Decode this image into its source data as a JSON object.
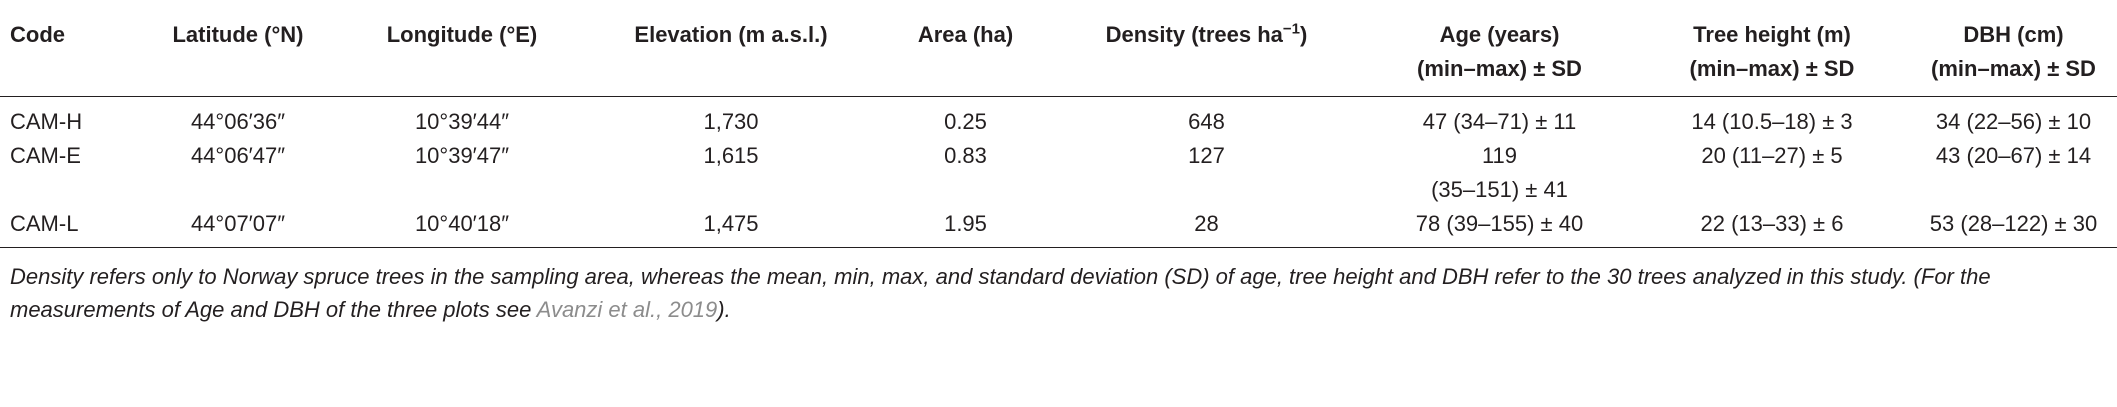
{
  "table": {
    "headers": [
      [
        "Code"
      ],
      [
        "Latitude (°N)"
      ],
      [
        "Longitude (°E)"
      ],
      [
        "Elevation (m a.s.l.)"
      ],
      [
        "Area (ha)"
      ],
      [
        "Density (trees ha",
        "−1",
        ")"
      ],
      [
        "Age (years)",
        "(min–max) ± SD"
      ],
      [
        "Tree height (m)",
        "(min–max) ± SD"
      ],
      [
        "DBH (cm)",
        "(min–max) ± SD"
      ]
    ],
    "rows": [
      [
        [
          "CAM-H"
        ],
        [
          "44°06′36″"
        ],
        [
          "10°39′44″"
        ],
        [
          "1,730"
        ],
        [
          "0.25"
        ],
        [
          "648"
        ],
        [
          "47 (34–71) ± 11"
        ],
        [
          "14 (10.5–18) ± 3"
        ],
        [
          "34 (22–56) ± 10"
        ]
      ],
      [
        [
          "CAM-E"
        ],
        [
          "44°06′47″"
        ],
        [
          "10°39′47″"
        ],
        [
          "1,615"
        ],
        [
          "0.83"
        ],
        [
          "127"
        ],
        [
          "119",
          "(35–151) ± 41"
        ],
        [
          "20 (11–27) ± 5"
        ],
        [
          "43 (20–67) ± 14"
        ]
      ],
      [
        [
          "CAM-L"
        ],
        [
          "44°07′07″"
        ],
        [
          "10°40′18″"
        ],
        [
          "1,475"
        ],
        [
          "1.95"
        ],
        [
          "28"
        ],
        [
          "78 (39–155) ± 40"
        ],
        [
          "22 (13–33) ± 6"
        ],
        [
          "53 (28–122) ± 30"
        ]
      ]
    ]
  },
  "caption": {
    "text": "Density refers only to Norway spruce trees in the sampling area, whereas the mean, min, max, and standard deviation (SD) of age, tree height and DBH refer to the 30 trees analyzed in this study. (For the measurements of Age and DBH of the three plots see ",
    "link": "Avanzi et al., 2019",
    "tail": ")."
  }
}
